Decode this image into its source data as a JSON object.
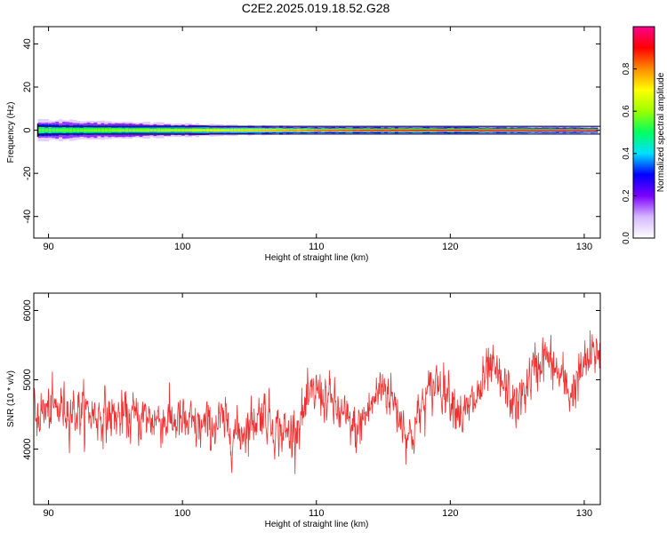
{
  "title": "C2E2.2025.019.18.52.G28",
  "chart_data": [
    {
      "type": "heatmap",
      "xlabel": "Height of straight line (km)",
      "ylabel": "Frequency (Hz)",
      "xlim": [
        88.9,
        131.2
      ],
      "ylim": [
        -50,
        48
      ],
      "xticks": [
        90,
        100,
        110,
        120,
        130
      ],
      "xtick_labels": [
        "90",
        "100",
        "110",
        "120",
        "130"
      ],
      "yticks": [
        40,
        20,
        0,
        -20,
        -40
      ],
      "ytick_labels": [
        "40",
        "20",
        "0",
        "-20",
        "-40"
      ],
      "ridge": {
        "center_frequency_hz": 0,
        "x": [
          89.2,
          95,
          100,
          105,
          110,
          115,
          120,
          125,
          131
        ],
        "half_width_hz": [
          5,
          4,
          3,
          2.2,
          1.8,
          1.8,
          1.8,
          1.6,
          1.5
        ],
        "peak_amplitude": [
          0.55,
          0.6,
          0.65,
          0.75,
          0.85,
          0.9,
          0.92,
          0.95,
          1.0
        ]
      },
      "colorbar": {
        "label": "Normalized spectral amplitude",
        "range": [
          0,
          1
        ],
        "ticks": [
          0.0,
          0.2,
          0.4,
          0.6,
          0.8
        ],
        "tick_labels": [
          "0.0",
          "0.2",
          "0.4",
          "0.6",
          "0.8"
        ],
        "colors": [
          "#ffffff",
          "#d6b8ff",
          "#7c00ff",
          "#0000ff",
          "#00e0ff",
          "#00ff60",
          "#9cff00",
          "#ffff00",
          "#ff8c00",
          "#ff0000",
          "#ff0090"
        ]
      }
    },
    {
      "type": "line",
      "xlabel": "Height of straight line (km)",
      "ylabel": "SNR (10 * v/v)",
      "xlim": [
        88.9,
        131.2
      ],
      "ylim": [
        3200,
        6250
      ],
      "xticks": [
        90,
        100,
        110,
        120,
        130
      ],
      "xtick_labels": [
        "90",
        "100",
        "110",
        "120",
        "130"
      ],
      "yticks": [
        6000,
        5000,
        4000
      ],
      "ytick_labels": [
        "6000",
        "5000",
        "4000"
      ],
      "series": [
        {
          "color": "#f03030",
          "trend_x": [
            88.9,
            90,
            91,
            93,
            95,
            97,
            99,
            100,
            101,
            102,
            103,
            104,
            105,
            106,
            107,
            108,
            109,
            110,
            111,
            112,
            113,
            114,
            115,
            116,
            117,
            118,
            119,
            120,
            121,
            122,
            123,
            124,
            125,
            126,
            127,
            128,
            129,
            130,
            131.2
          ],
          "trend_y": [
            4500,
            4550,
            4600,
            4520,
            4460,
            4450,
            4420,
            4380,
            4300,
            4320,
            4380,
            4200,
            4350,
            4560,
            4300,
            4200,
            4500,
            4850,
            4700,
            4450,
            4250,
            4600,
            4950,
            4600,
            4150,
            4650,
            5000,
            4800,
            4450,
            4750,
            5150,
            4900,
            4600,
            5050,
            5350,
            5100,
            4800,
            5200,
            5450
          ],
          "noise_std": 260
        }
      ]
    }
  ]
}
